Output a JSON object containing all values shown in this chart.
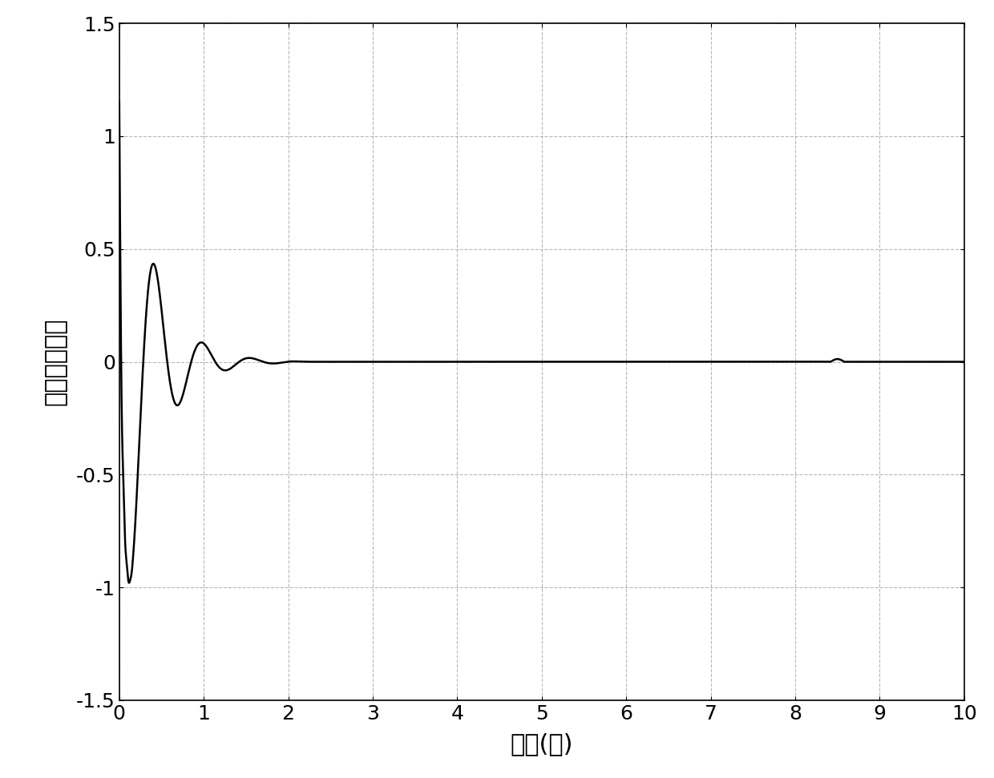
{
  "title": "",
  "xlabel": "时间(秒)",
  "ylabel": "交轴定子电流",
  "xlim": [
    0,
    10
  ],
  "ylim": [
    -1.5,
    1.5
  ],
  "xticks": [
    0,
    1,
    2,
    3,
    4,
    5,
    6,
    7,
    8,
    9,
    10
  ],
  "yticks": [
    -1.5,
    -1.0,
    -0.5,
    0,
    0.5,
    1.0,
    1.5
  ],
  "line_color": "#000000",
  "line_width": 1.8,
  "background_color": "#ffffff",
  "grid_color": "#999999",
  "grid_linestyle": "--",
  "font_size_label": 22,
  "font_size_tick": 18
}
